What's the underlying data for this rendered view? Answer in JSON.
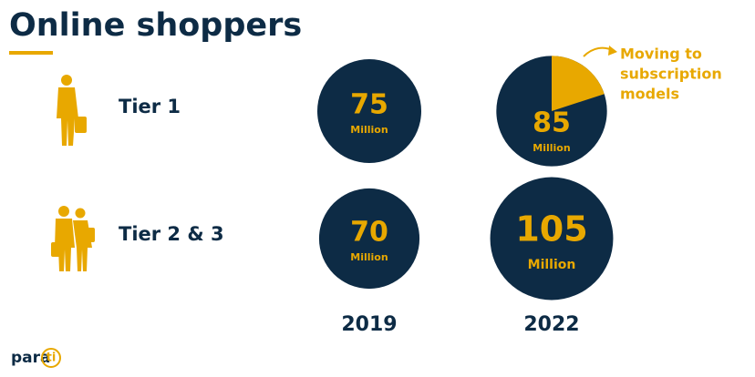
{
  "title": "Online shoppers",
  "rows": [
    {
      "label": "Tier 1",
      "cells": [
        {
          "value": 75,
          "unit": "Million"
        },
        {
          "value": 85,
          "unit": "Million",
          "share": 20
        }
      ]
    },
    {
      "label": "Tier 2 & 3",
      "cells": [
        {
          "value": 70,
          "unit": "Million"
        },
        {
          "value": 105,
          "unit": "Million"
        }
      ]
    }
  ],
  "years": [
    "2019",
    "2022"
  ],
  "annotation": [
    "Moving to",
    "subscription",
    "models"
  ],
  "logo": {
    "text": "para",
    "badge": "ti"
  }
}
